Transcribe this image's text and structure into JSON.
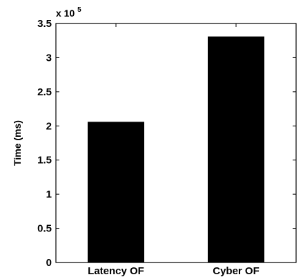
{
  "chart_data": {
    "type": "bar",
    "categories": [
      "Latency OF",
      "Cyber OF"
    ],
    "values": [
      206000,
      331000
    ],
    "ylabel": "Time (ms)",
    "xlabel": "",
    "ylim": [
      0,
      350000
    ],
    "y_ticks": [
      0,
      50000,
      100000,
      150000,
      200000,
      250000,
      300000,
      350000
    ],
    "y_tick_labels": [
      "0",
      "0.5",
      "1",
      "1.5",
      "2",
      "2.5",
      "3",
      "3.5"
    ],
    "y_multiplier_base": "x 10",
    "y_multiplier_exponent": "5",
    "bar_color": "#000000",
    "grid": false,
    "legend": "none"
  }
}
